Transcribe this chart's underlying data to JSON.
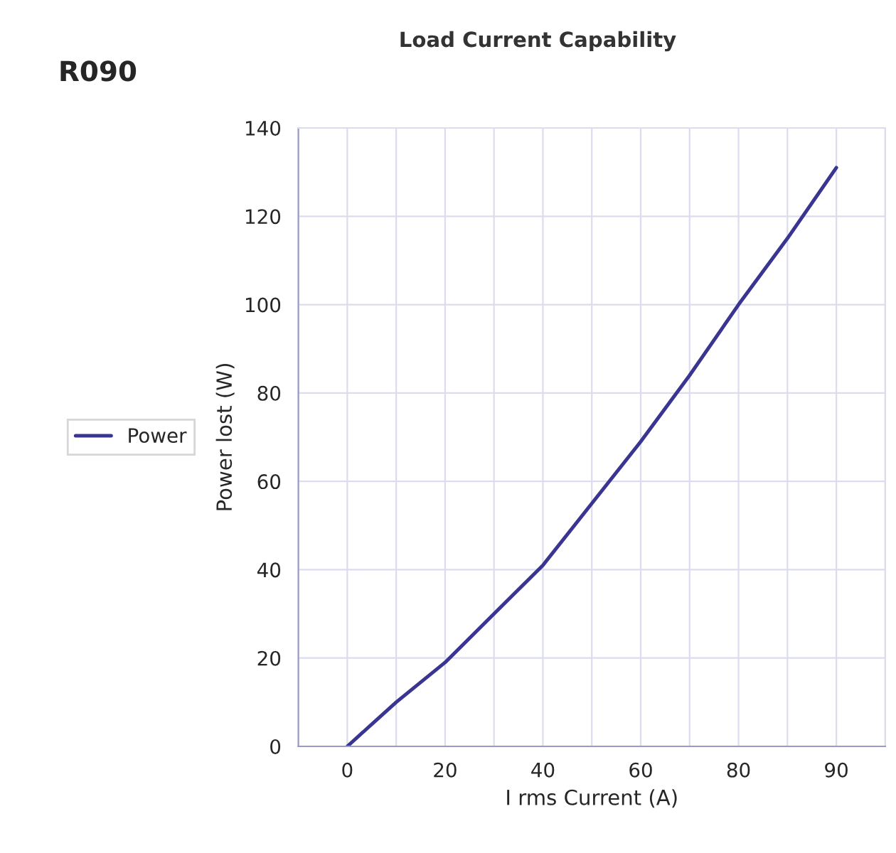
{
  "chart_data": {
    "type": "line",
    "title": "Load Current Capability",
    "xlabel": "I rms Current (A)",
    "ylabel": "Power lost (W)",
    "annotations": [
      "R090"
    ],
    "categories": [
      "0",
      null,
      "20",
      null,
      "40",
      null,
      "60",
      null,
      "80",
      null,
      "90"
    ],
    "series": [
      {
        "name": "Power",
        "color": "#3b3592",
        "values": [
          0,
          10,
          19,
          30,
          41,
          55,
          69,
          84,
          100,
          115,
          131
        ]
      }
    ],
    "ylim": [
      0,
      140
    ],
    "yticks": [
      0,
      20,
      40,
      60,
      80,
      100,
      120,
      140
    ],
    "grid": true,
    "legend": "left",
    "marker": "none",
    "line_style": "solid"
  }
}
